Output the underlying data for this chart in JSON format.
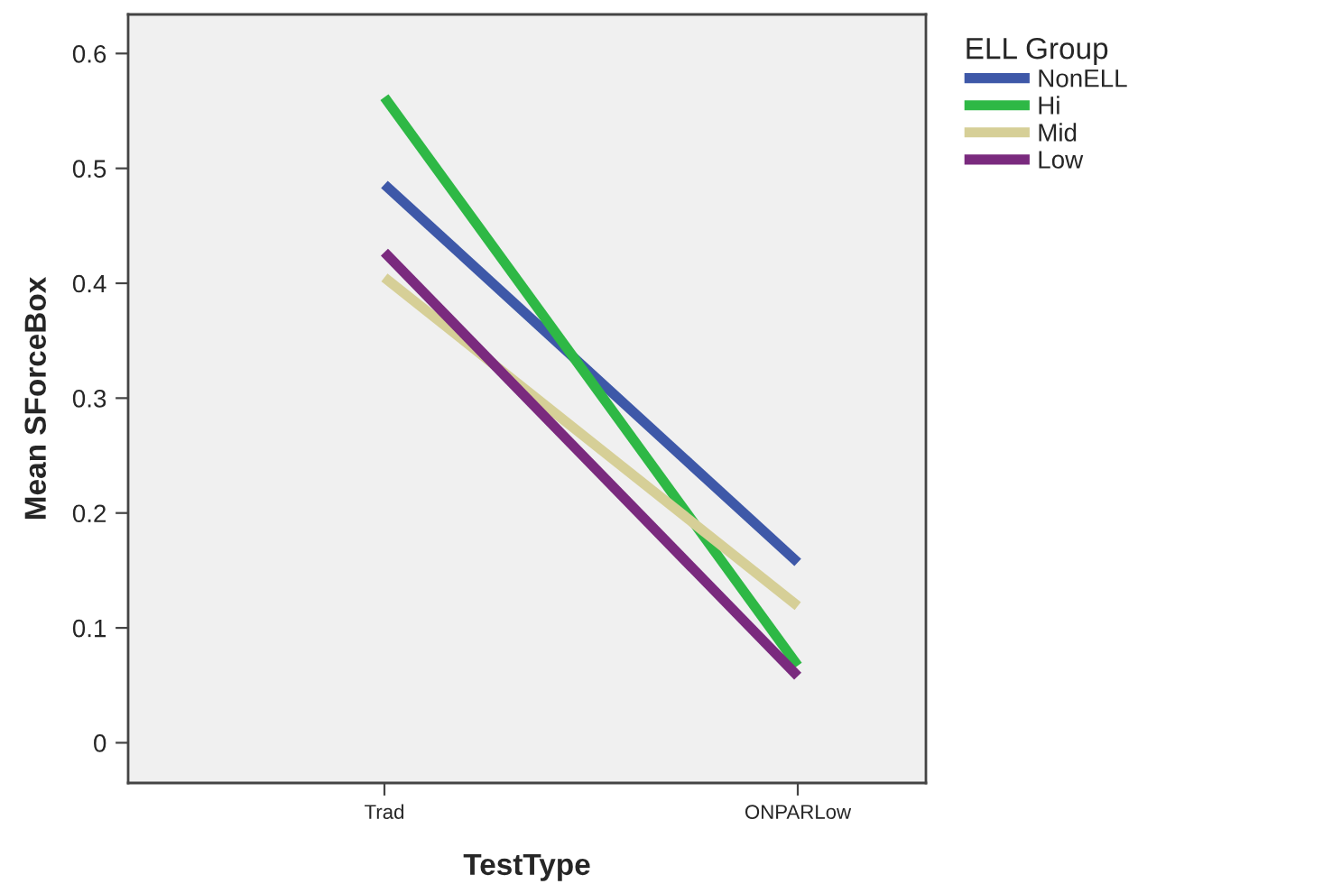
{
  "chart_data": {
    "type": "line",
    "xlabel": "TestType",
    "ylabel": "Mean SForceBox",
    "legend_title": "ELL Group",
    "legend": "top right",
    "grid": false,
    "categories": [
      "Trad",
      "ONPARLow"
    ],
    "ylim": [
      -0.035,
      0.634
    ],
    "yticks": [
      0,
      0.1,
      0.2,
      0.3,
      0.4,
      0.5,
      0.6
    ],
    "series": [
      {
        "name": "NonELL",
        "color": "#3e58a8",
        "values": [
          0.486,
          0.157
        ]
      },
      {
        "name": "Hi",
        "color": "#2eb845",
        "values": [
          0.562,
          0.067
        ]
      },
      {
        "name": "Mid",
        "color": "#d6cf97",
        "values": [
          0.405,
          0.119
        ]
      },
      {
        "name": "Low",
        "color": "#7a2a7e",
        "values": [
          0.427,
          0.058
        ]
      }
    ]
  }
}
